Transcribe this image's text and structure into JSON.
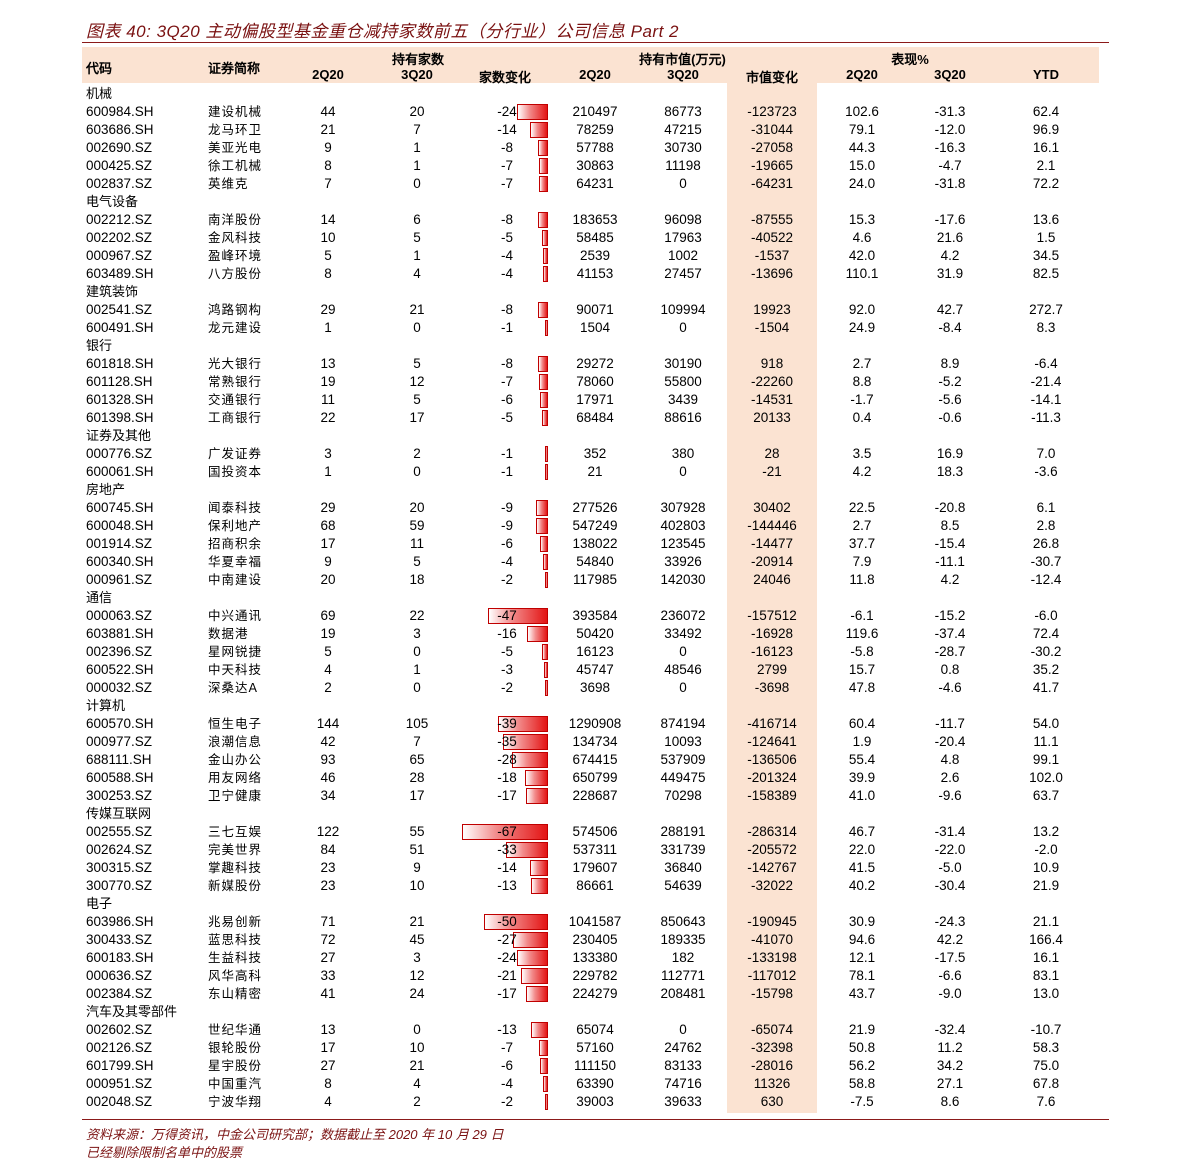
{
  "title": "图表 40: 3Q20 主动偏股型基金重仓减持家数前五（分行业）公司信息 Part 2",
  "headers": {
    "code": "代码",
    "name": "证券简称",
    "holders_group": "持有家数",
    "value_group": "持有市值(万元)",
    "perf_group": "表现%",
    "q2": "2Q20",
    "q3": "3Q20",
    "holders_change": "家数变化",
    "value_change": "市值变化",
    "ytd": "YTD"
  },
  "colors": {
    "accent": "#7a1111",
    "highlight": "#fbe3d2",
    "bar": "#e31414"
  },
  "bar_scale_max_abs": 67,
  "sections": [
    {
      "category": "机械",
      "rows": [
        [
          "600984.SH",
          "建设机械",
          "44",
          "20",
          "-24",
          "210497",
          "86773",
          "-123723",
          "102.6",
          "-31.3",
          "62.4"
        ],
        [
          "603686.SH",
          "龙马环卫",
          "21",
          "7",
          "-14",
          "78259",
          "47215",
          "-31044",
          "79.1",
          "-12.0",
          "96.9"
        ],
        [
          "002690.SZ",
          "美亚光电",
          "9",
          "1",
          "-8",
          "57788",
          "30730",
          "-27058",
          "44.3",
          "-16.3",
          "16.1"
        ],
        [
          "000425.SZ",
          "徐工机械",
          "8",
          "1",
          "-7",
          "30863",
          "11198",
          "-19665",
          "15.0",
          "-4.7",
          "2.1"
        ],
        [
          "002837.SZ",
          "英维克",
          "7",
          "0",
          "-7",
          "64231",
          "0",
          "-64231",
          "24.0",
          "-31.8",
          "72.2"
        ]
      ]
    },
    {
      "category": "电气设备",
      "rows": [
        [
          "002212.SZ",
          "南洋股份",
          "14",
          "6",
          "-8",
          "183653",
          "96098",
          "-87555",
          "15.3",
          "-17.6",
          "13.6"
        ],
        [
          "002202.SZ",
          "金风科技",
          "10",
          "5",
          "-5",
          "58485",
          "17963",
          "-40522",
          "4.6",
          "21.6",
          "1.5"
        ],
        [
          "000967.SZ",
          "盈峰环境",
          "5",
          "1",
          "-4",
          "2539",
          "1002",
          "-1537",
          "42.0",
          "4.2",
          "34.5"
        ],
        [
          "603489.SH",
          "八方股份",
          "8",
          "4",
          "-4",
          "41153",
          "27457",
          "-13696",
          "110.1",
          "31.9",
          "82.5"
        ]
      ]
    },
    {
      "category": "建筑装饰",
      "rows": [
        [
          "002541.SZ",
          "鸿路钢构",
          "29",
          "21",
          "-8",
          "90071",
          "109994",
          "19923",
          "92.0",
          "42.7",
          "272.7"
        ],
        [
          "600491.SH",
          "龙元建设",
          "1",
          "0",
          "-1",
          "1504",
          "0",
          "-1504",
          "24.9",
          "-8.4",
          "8.3"
        ]
      ]
    },
    {
      "category": "银行",
      "rows": [
        [
          "601818.SH",
          "光大银行",
          "13",
          "5",
          "-8",
          "29272",
          "30190",
          "918",
          "2.7",
          "8.9",
          "-6.4"
        ],
        [
          "601128.SH",
          "常熟银行",
          "19",
          "12",
          "-7",
          "78060",
          "55800",
          "-22260",
          "8.8",
          "-5.2",
          "-21.4"
        ],
        [
          "601328.SH",
          "交通银行",
          "11",
          "5",
          "-6",
          "17971",
          "3439",
          "-14531",
          "-1.7",
          "-5.6",
          "-14.1"
        ],
        [
          "601398.SH",
          "工商银行",
          "22",
          "17",
          "-5",
          "68484",
          "88616",
          "20133",
          "0.4",
          "-0.6",
          "-11.3"
        ]
      ]
    },
    {
      "category": "证券及其他",
      "rows": [
        [
          "000776.SZ",
          "广发证券",
          "3",
          "2",
          "-1",
          "352",
          "380",
          "28",
          "3.5",
          "16.9",
          "7.0"
        ],
        [
          "600061.SH",
          "国投资本",
          "1",
          "0",
          "-1",
          "21",
          "0",
          "-21",
          "4.2",
          "18.3",
          "-3.6"
        ]
      ]
    },
    {
      "category": "房地产",
      "rows": [
        [
          "600745.SH",
          "闻泰科技",
          "29",
          "20",
          "-9",
          "277526",
          "307928",
          "30402",
          "22.5",
          "-20.8",
          "6.1"
        ],
        [
          "600048.SH",
          "保利地产",
          "68",
          "59",
          "-9",
          "547249",
          "402803",
          "-144446",
          "2.7",
          "8.5",
          "2.8"
        ],
        [
          "001914.SZ",
          "招商积余",
          "17",
          "11",
          "-6",
          "138022",
          "123545",
          "-14477",
          "37.7",
          "-15.4",
          "26.8"
        ],
        [
          "600340.SH",
          "华夏幸福",
          "9",
          "5",
          "-4",
          "54840",
          "33926",
          "-20914",
          "7.9",
          "-11.1",
          "-30.7"
        ],
        [
          "000961.SZ",
          "中南建设",
          "20",
          "18",
          "-2",
          "117985",
          "142030",
          "24046",
          "11.8",
          "4.2",
          "-12.4"
        ]
      ]
    },
    {
      "category": "通信",
      "rows": [
        [
          "000063.SZ",
          "中兴通讯",
          "69",
          "22",
          "-47",
          "393584",
          "236072",
          "-157512",
          "-6.1",
          "-15.2",
          "-6.0"
        ],
        [
          "603881.SH",
          "数据港",
          "19",
          "3",
          "-16",
          "50420",
          "33492",
          "-16928",
          "119.6",
          "-37.4",
          "72.4"
        ],
        [
          "002396.SZ",
          "星网锐捷",
          "5",
          "0",
          "-5",
          "16123",
          "0",
          "-16123",
          "-5.8",
          "-28.7",
          "-30.2"
        ],
        [
          "600522.SH",
          "中天科技",
          "4",
          "1",
          "-3",
          "45747",
          "48546",
          "2799",
          "15.7",
          "0.8",
          "35.2"
        ],
        [
          "000032.SZ",
          "深桑达A",
          "2",
          "0",
          "-2",
          "3698",
          "0",
          "-3698",
          "47.8",
          "-4.6",
          "41.7"
        ]
      ]
    },
    {
      "category": "计算机",
      "rows": [
        [
          "600570.SH",
          "恒生电子",
          "144",
          "105",
          "-39",
          "1290908",
          "874194",
          "-416714",
          "60.4",
          "-11.7",
          "54.0"
        ],
        [
          "000977.SZ",
          "浪潮信息",
          "42",
          "7",
          "-35",
          "134734",
          "10093",
          "-124641",
          "1.9",
          "-20.4",
          "11.1"
        ],
        [
          "688111.SH",
          "金山办公",
          "93",
          "65",
          "-28",
          "674415",
          "537909",
          "-136506",
          "55.4",
          "4.8",
          "99.1"
        ],
        [
          "600588.SH",
          "用友网络",
          "46",
          "28",
          "-18",
          "650799",
          "449475",
          "-201324",
          "39.9",
          "2.6",
          "102.0"
        ],
        [
          "300253.SZ",
          "卫宁健康",
          "34",
          "17",
          "-17",
          "228687",
          "70298",
          "-158389",
          "41.0",
          "-9.6",
          "63.7"
        ]
      ]
    },
    {
      "category": "传媒互联网",
      "rows": [
        [
          "002555.SZ",
          "三七互娱",
          "122",
          "55",
          "-67",
          "574506",
          "288191",
          "-286314",
          "46.7",
          "-31.4",
          "13.2"
        ],
        [
          "002624.SZ",
          "完美世界",
          "84",
          "51",
          "-33",
          "537311",
          "331739",
          "-205572",
          "22.0",
          "-22.0",
          "-2.0"
        ],
        [
          "300315.SZ",
          "掌趣科技",
          "23",
          "9",
          "-14",
          "179607",
          "36840",
          "-142767",
          "41.5",
          "-5.0",
          "10.9"
        ],
        [
          "300770.SZ",
          "新媒股份",
          "23",
          "10",
          "-13",
          "86661",
          "54639",
          "-32022",
          "40.2",
          "-30.4",
          "21.9"
        ]
      ]
    },
    {
      "category": "电子",
      "rows": [
        [
          "603986.SH",
          "兆易创新",
          "71",
          "21",
          "-50",
          "1041587",
          "850643",
          "-190945",
          "30.9",
          "-24.3",
          "21.1"
        ],
        [
          "300433.SZ",
          "蓝思科技",
          "72",
          "45",
          "-27",
          "230405",
          "189335",
          "-41070",
          "94.6",
          "42.2",
          "166.4"
        ],
        [
          "600183.SH",
          "生益科技",
          "27",
          "3",
          "-24",
          "133380",
          "182",
          "-133198",
          "12.1",
          "-17.5",
          "16.1"
        ],
        [
          "000636.SZ",
          "风华高科",
          "33",
          "12",
          "-21",
          "229782",
          "112771",
          "-117012",
          "78.1",
          "-6.6",
          "83.1"
        ],
        [
          "002384.SZ",
          "东山精密",
          "41",
          "24",
          "-17",
          "224279",
          "208481",
          "-15798",
          "43.7",
          "-9.0",
          "13.0"
        ]
      ]
    },
    {
      "category": "汽车及其零部件",
      "rows": [
        [
          "002602.SZ",
          "世纪华通",
          "13",
          "0",
          "-13",
          "65074",
          "0",
          "-65074",
          "21.9",
          "-32.4",
          "-10.7"
        ],
        [
          "002126.SZ",
          "银轮股份",
          "17",
          "10",
          "-7",
          "57160",
          "24762",
          "-32398",
          "50.8",
          "11.2",
          "58.3"
        ],
        [
          "601799.SH",
          "星宇股份",
          "27",
          "21",
          "-6",
          "111150",
          "83133",
          "-28016",
          "56.2",
          "34.2",
          "75.0"
        ],
        [
          "000951.SZ",
          "中国重汽",
          "8",
          "4",
          "-4",
          "63390",
          "74716",
          "11326",
          "58.8",
          "27.1",
          "67.8"
        ],
        [
          "002048.SZ",
          "宁波华翔",
          "4",
          "2",
          "-2",
          "39003",
          "39633",
          "630",
          "-7.5",
          "8.6",
          "7.6"
        ]
      ]
    }
  ],
  "footer": {
    "source": "资料来源：万得资讯，中金公司研究部；数据截止至 2020 年 10 月 29 日",
    "note": "已经剔除限制名单中的股票"
  }
}
